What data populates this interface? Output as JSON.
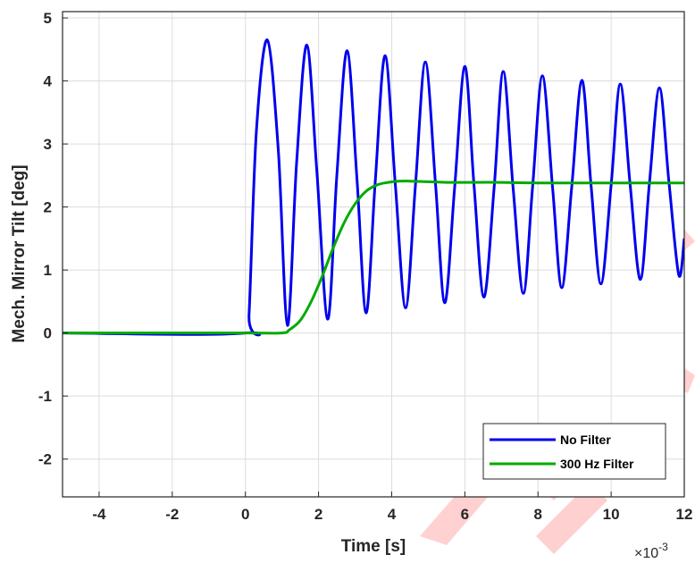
{
  "chart_data": {
    "type": "line",
    "xlabel": "Time [s]",
    "ylabel": "Mech. Mirror Tilt [deg]",
    "x_exponent_base": "×10",
    "x_exponent_power": "-3",
    "xlim": [
      -5,
      12
    ],
    "ylim": [
      -2.6,
      5.1
    ],
    "xticks": [
      -4,
      -2,
      0,
      2,
      4,
      6,
      8,
      10,
      12
    ],
    "xtick_labels": [
      "-4",
      "-2",
      "0",
      "2",
      "4",
      "6",
      "8",
      "10",
      "12"
    ],
    "yticks": [
      -2,
      -1,
      0,
      1,
      2,
      3,
      4,
      5
    ],
    "ytick_labels": [
      "-2",
      "-1",
      "0",
      "1",
      "2",
      "3",
      "4",
      "5"
    ],
    "grid": true,
    "legend_position": "bottom-right",
    "series": [
      {
        "name": "No Filter",
        "color": "#0000ee",
        "x": [
          -5,
          0,
          0.1,
          0.3,
          0.6,
          0.9,
          1.15,
          1.4,
          1.68,
          1.95,
          2.25,
          2.5,
          2.78,
          3.05,
          3.3,
          3.55,
          3.82,
          4.1,
          4.38,
          4.65,
          4.92,
          5.2,
          5.45,
          5.72,
          6.0,
          6.25,
          6.52,
          6.8,
          7.05,
          7.32,
          7.6,
          7.85,
          8.12,
          8.4,
          8.65,
          8.92,
          9.2,
          9.45,
          9.72,
          10.0,
          10.25,
          10.52,
          10.8,
          11.05,
          11.32,
          11.58,
          11.85,
          12.0
        ],
        "y": [
          0,
          0,
          0.3,
          3.2,
          4.65,
          2.9,
          0.12,
          2.7,
          4.57,
          2.6,
          0.22,
          2.5,
          4.48,
          2.45,
          0.32,
          2.4,
          4.4,
          2.35,
          0.4,
          2.35,
          4.3,
          2.35,
          0.48,
          2.3,
          4.23,
          2.35,
          0.57,
          2.3,
          4.15,
          2.3,
          0.63,
          2.3,
          4.08,
          2.3,
          0.72,
          2.3,
          4.01,
          2.35,
          0.78,
          2.35,
          3.95,
          2.35,
          0.85,
          2.4,
          3.89,
          2.4,
          0.92,
          1.5
        ]
      },
      {
        "name": "300 Hz Filter",
        "color": "#00aa00",
        "x": [
          -5,
          0,
          1.0,
          1.2,
          1.5,
          1.8,
          2.1,
          2.4,
          2.7,
          3.0,
          3.3,
          3.6,
          3.9,
          4.2,
          4.5,
          5.0,
          5.5,
          6.0,
          7.0,
          8.0,
          9.0,
          10.0,
          11.0,
          12.0
        ],
        "y": [
          0,
          0,
          0.0,
          0.05,
          0.2,
          0.5,
          0.9,
          1.35,
          1.75,
          2.05,
          2.25,
          2.35,
          2.39,
          2.41,
          2.41,
          2.4,
          2.39,
          2.39,
          2.39,
          2.38,
          2.38,
          2.38,
          2.38,
          2.38
        ]
      }
    ]
  }
}
